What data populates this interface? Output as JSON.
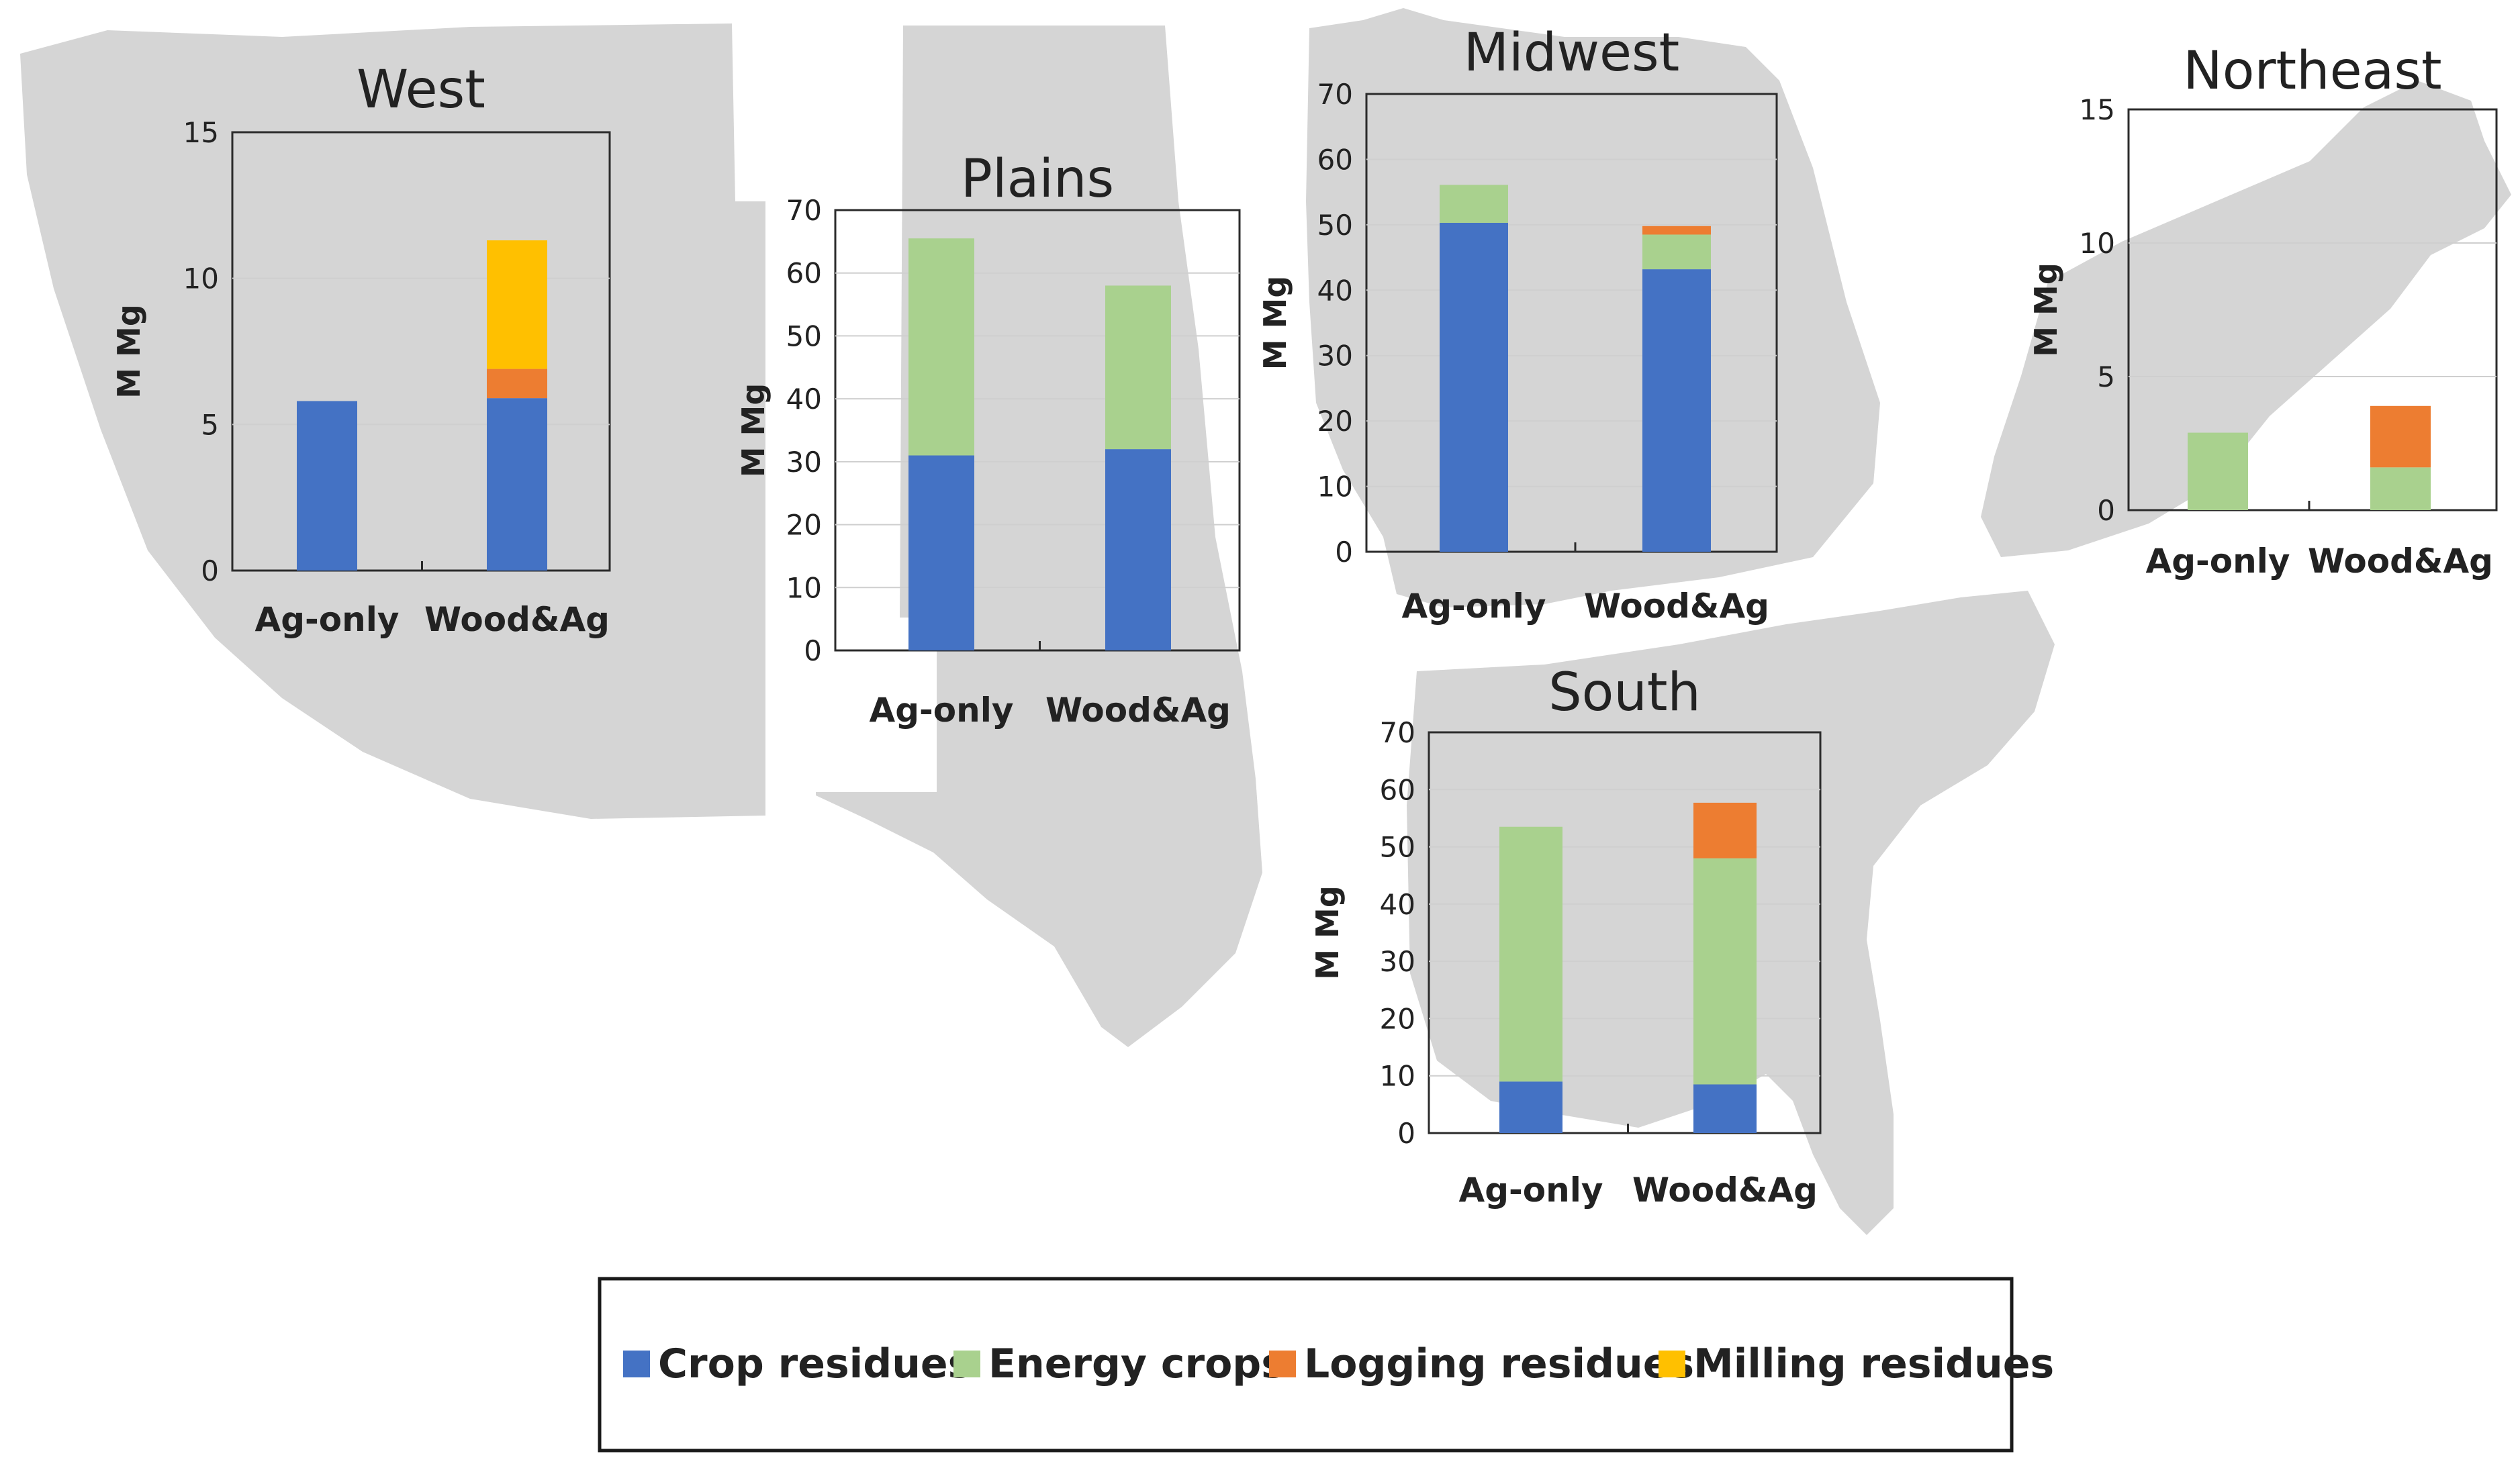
{
  "legend": [
    {
      "key": "crop",
      "label": "Crop residues",
      "color": "#4472c4"
    },
    {
      "key": "energy",
      "label": "Energy crops",
      "color": "#a9d18e"
    },
    {
      "key": "logging",
      "label": "Logging residues",
      "color": "#ed7d31"
    },
    {
      "key": "milling",
      "label": "Milling residues",
      "color": "#ffc000"
    }
  ],
  "chart_data": [
    {
      "type": "bar",
      "stacked": true,
      "title": "West",
      "ylabel": "M Mg",
      "ylim": [
        0,
        15
      ],
      "yticks": [
        0,
        5,
        10,
        15
      ],
      "categories": [
        "Ag-only",
        "Wood&Ag"
      ],
      "series": [
        {
          "name": "Crop residues",
          "values": [
            5.8,
            5.9
          ]
        },
        {
          "name": "Energy crops",
          "values": [
            0,
            0
          ]
        },
        {
          "name": "Logging residues",
          "values": [
            0,
            1.0
          ]
        },
        {
          "name": "Milling residues",
          "values": [
            0,
            4.4
          ]
        }
      ]
    },
    {
      "type": "bar",
      "stacked": true,
      "title": "Plains",
      "ylabel": "M Mg",
      "ylim": [
        0,
        70
      ],
      "yticks": [
        0,
        10,
        20,
        30,
        40,
        50,
        60,
        70
      ],
      "categories": [
        "Ag-only",
        "Wood&Ag"
      ],
      "series": [
        {
          "name": "Crop residues",
          "values": [
            31,
            32
          ]
        },
        {
          "name": "Energy crops",
          "values": [
            34.5,
            26
          ]
        },
        {
          "name": "Logging residues",
          "values": [
            0,
            0
          ]
        },
        {
          "name": "Milling residues",
          "values": [
            0,
            0
          ]
        }
      ]
    },
    {
      "type": "bar",
      "stacked": true,
      "title": "Midwest",
      "ylabel": "M Mg",
      "ylim": [
        0,
        70
      ],
      "yticks": [
        0,
        10,
        20,
        30,
        40,
        50,
        60,
        70
      ],
      "categories": [
        "Ag-only",
        "Wood&Ag"
      ],
      "series": [
        {
          "name": "Crop residues",
          "values": [
            50.3,
            43.2
          ]
        },
        {
          "name": "Energy crops",
          "values": [
            5.8,
            5.3
          ]
        },
        {
          "name": "Logging residues",
          "values": [
            0,
            1.3
          ]
        },
        {
          "name": "Milling residues",
          "values": [
            0,
            0
          ]
        }
      ]
    },
    {
      "type": "bar",
      "stacked": true,
      "title": "Northeast",
      "ylabel": "M Mg",
      "ylim": [
        0,
        15
      ],
      "yticks": [
        0,
        5,
        10,
        15
      ],
      "categories": [
        "Ag-only",
        "Wood&Ag"
      ],
      "series": [
        {
          "name": "Crop residues",
          "values": [
            0,
            0
          ]
        },
        {
          "name": "Energy crops",
          "values": [
            2.9,
            1.6
          ]
        },
        {
          "name": "Logging residues",
          "values": [
            0,
            2.3
          ]
        },
        {
          "name": "Milling residues",
          "values": [
            0,
            0
          ]
        }
      ]
    },
    {
      "type": "bar",
      "stacked": true,
      "title": "South",
      "ylabel": "M Mg",
      "ylim": [
        0,
        70
      ],
      "yticks": [
        0,
        10,
        20,
        30,
        40,
        50,
        60,
        70
      ],
      "categories": [
        "Ag-only",
        "Wood&Ag"
      ],
      "series": [
        {
          "name": "Crop residues",
          "values": [
            9,
            8.5
          ]
        },
        {
          "name": "Energy crops",
          "values": [
            44.5,
            39.5
          ]
        },
        {
          "name": "Logging residues",
          "values": [
            0,
            9.7
          ]
        },
        {
          "name": "Milling residues",
          "values": [
            0,
            0
          ]
        }
      ]
    }
  ]
}
